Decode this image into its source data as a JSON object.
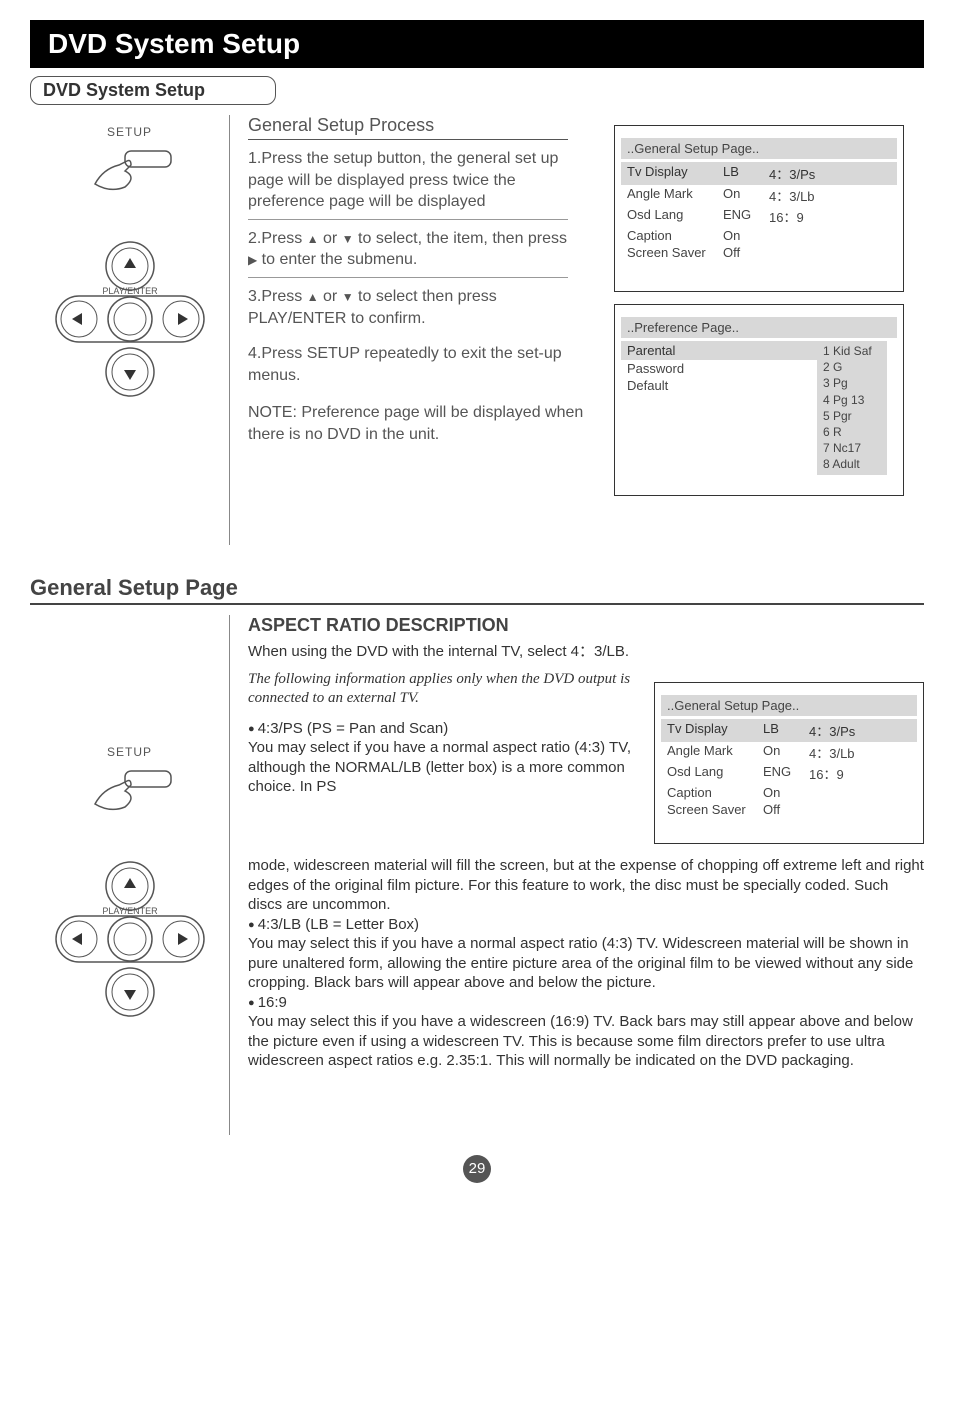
{
  "titleBar": "DVD System Setup",
  "subTitle": "DVD System Setup",
  "setupLabel": "SETUP",
  "playEnterLabel": "PLAY/ENTER",
  "gspHeading": "General Setup Process",
  "step1": "1.Press the setup button, the general set up page will be displayed press twice the preference page will be displayed",
  "step2a": "2.Press ",
  "step2b": " or ",
  "step2c": "   to select, the item, then press ",
  "step2d": " to enter the submenu.",
  "step3a": "3.Press ",
  "step3b": " or ",
  "step3c": "  to select  then press PLAY/ENTER to confirm.",
  "step4": "4.Press SETUP repeatedly  to exit  the  set-up menus.",
  "note": "NOTE: Preference page will be displayed when there is no DVD in the unit.",
  "menu1": {
    "header": "..General Setup Page..",
    "rows": [
      {
        "c1": "Tv Display",
        "c2": "LB",
        "c3": "4：3/Ps",
        "hl": true
      },
      {
        "c1": "Angle Mark",
        "c2": "On",
        "c3": "4：3/Lb",
        "hl": false
      },
      {
        "c1": "Osd Lang",
        "c2": "ENG",
        "c3": "16：9",
        "hl": false
      },
      {
        "c1": "Caption",
        "c2": "On",
        "c3": "",
        "hl": false
      },
      {
        "c1": "Screen Saver",
        "c2": "Off",
        "c3": "",
        "hl": false
      }
    ]
  },
  "menu2": {
    "header": "..Preference Page..",
    "leftRows": [
      "Parental",
      "Password",
      "Default"
    ],
    "rightList": [
      "1 Kid Saf",
      "2 G",
      "3 Pg",
      "4 Pg 13",
      "5 Pgr",
      "6 R",
      "7 Nc17",
      "8 Adult"
    ]
  },
  "h2": "General Setup Page",
  "h3": "ASPECT RATIO DESCRIPTION",
  "aspectIntro": "When using the DVD with the internal TV, select 4：3/LB.",
  "aspectItalic": "The following information applies only when the DVD output is connected to an external TV.",
  "bullet1": "4:3/PS (PS = Pan and Scan)",
  "para1a": "You may select if you have a normal aspect ratio (4:3) TV, although the NORMAL/LB (letter box) is a more common choice. In PS",
  "para1b": "mode, widescreen material will fill the screen, but at the expense of chopping off extreme left and right edges of the original film picture. For this feature to work, the disc must be specially coded. Such discs are uncommon.",
  "bullet2": "4:3/LB (LB = Letter Box)",
  "para2": "You may select this if you have a normal aspect ratio (4:3) TV. Widescreen material will be shown in pure unaltered form, allowing the entire picture area of the original film to be viewed without any side cropping. Black bars will appear above and below the picture.",
  "bullet3": "16:9",
  "para3": "You may select this if you have a widescreen (16:9) TV. Back bars may still appear above and below the picture even if using a widescreen TV. This is because some film directors prefer to use ultra widescreen aspect ratios e.g. 2.35:1. This will normally be indicated on the DVD packaging.",
  "menu3": {
    "header": "..General Setup Page..",
    "rows": [
      {
        "c1": "Tv Display",
        "c2": "LB",
        "c3": "4：3/Ps",
        "hl": true
      },
      {
        "c1": "Angle Mark",
        "c2": "On",
        "c3": "4：3/Lb",
        "hl": false
      },
      {
        "c1": "Osd Lang",
        "c2": "ENG",
        "c3": "16：9",
        "hl": false
      },
      {
        "c1": "Caption",
        "c2": "On",
        "c3": "",
        "hl": false
      },
      {
        "c1": "Screen Saver",
        "c2": "Off",
        "c3": "",
        "hl": false
      }
    ]
  },
  "pageNum": "29",
  "colors": {
    "titleBg": "#000000",
    "titleFg": "#ffffff",
    "menuShade": "#d8d8d8",
    "textGrey": "#555555"
  }
}
